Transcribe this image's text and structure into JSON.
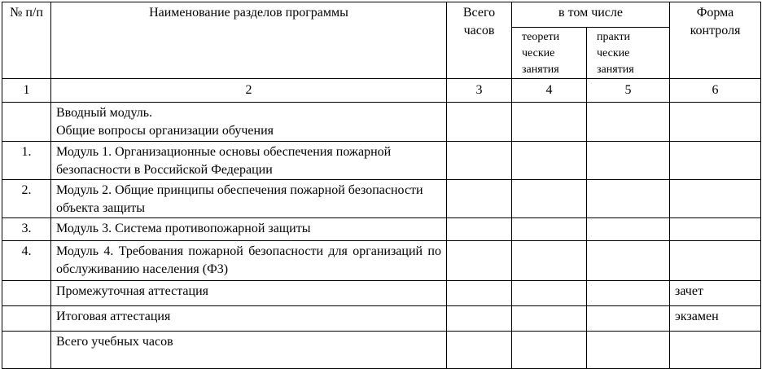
{
  "header": {
    "num": "№ п/п",
    "name": "Наименование разделов программы",
    "total": "Всего часов",
    "including": "в том числе",
    "theory": "теорети ческие занятия",
    "practice": "практи ческие занятия",
    "control": "Форма контроля"
  },
  "column_numbers": [
    "1",
    "2",
    "3",
    "4",
    "5",
    "6"
  ],
  "rows": [
    {
      "num": "",
      "name_line1": "Вводный модуль.",
      "name_line2": "Общие вопросы организации обучения",
      "control": ""
    },
    {
      "num": "1.",
      "name": "Модуль 1. Организационные основы обеспечения пожарной безопасности в Российской Федерации",
      "control": ""
    },
    {
      "num": "2.",
      "name": "Модуль 2. Общие принципы обеспечения пожарной безопасности объекта защиты",
      "control": ""
    },
    {
      "num": "3.",
      "name": "Модуль 3. Система противопожарной защиты",
      "control": ""
    },
    {
      "num": "4.",
      "name": "Модуль 4. Требования пожарной безопасности для организаций по обслуживанию населения (Ф3)",
      "control": ""
    },
    {
      "num": "",
      "name": "Промежуточная аттестация",
      "control": "зачет"
    },
    {
      "num": "",
      "name": "Итоговая аттестация",
      "control": "экзамен"
    },
    {
      "num": "",
      "name": "Всего учебных часов",
      "control": ""
    }
  ]
}
